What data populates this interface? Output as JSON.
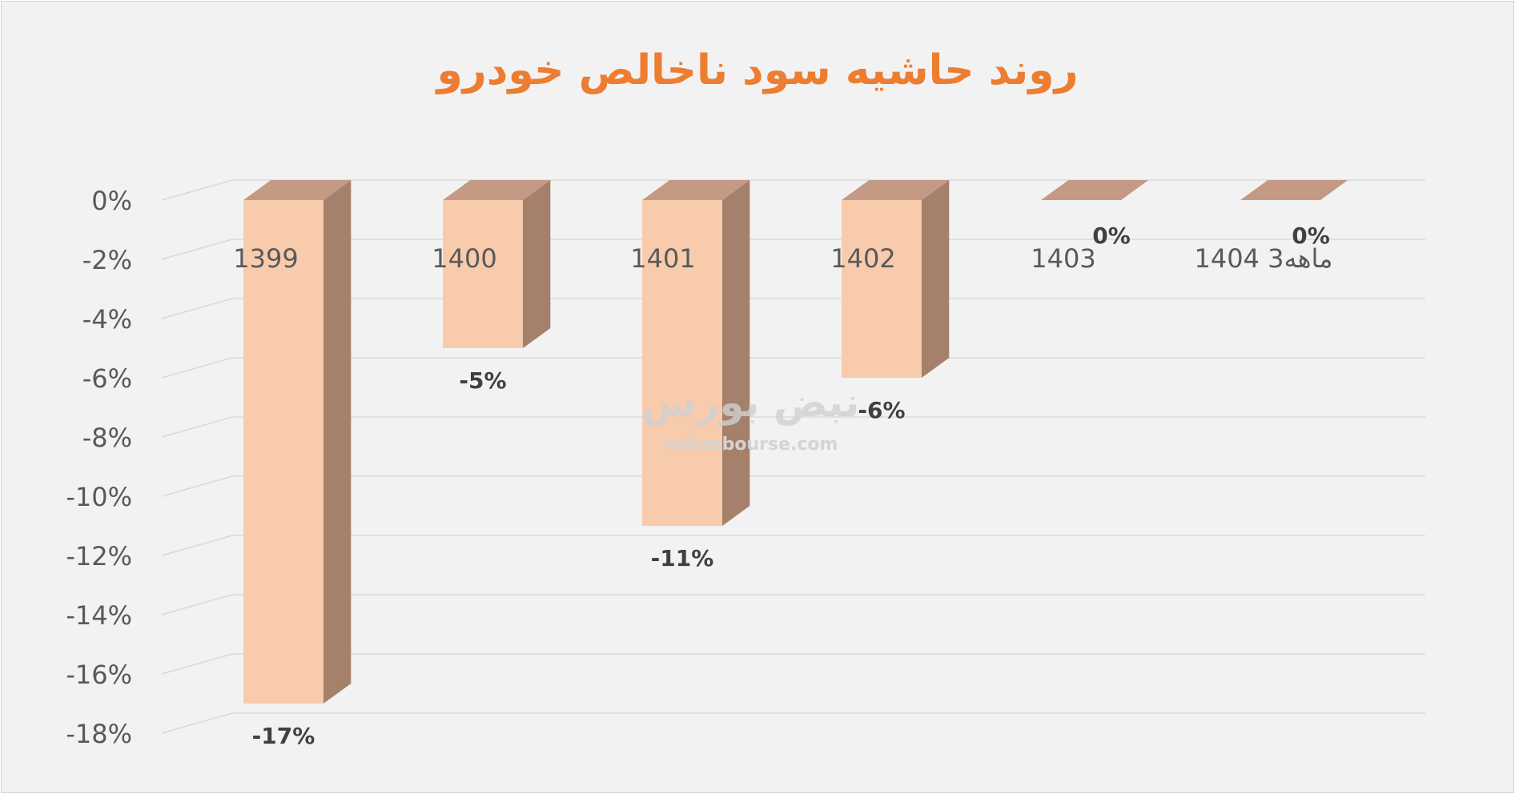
{
  "chart_data": {
    "type": "bar",
    "title": "روند حاشیه سود ناخالص خودرو",
    "categories": [
      "1399",
      "1400",
      "1401",
      "1402",
      "1403",
      "1404 3ماهه"
    ],
    "values": [
      -17,
      -5,
      -11,
      -6,
      0,
      0
    ],
    "data_labels": [
      "-17%",
      "-5%",
      "-11%",
      "-6%",
      "0%",
      "0%"
    ],
    "ylim": [
      -18,
      0
    ],
    "yticks": [
      "0%",
      "-2%",
      "-4%",
      "-6%",
      "-8%",
      "-10%",
      "-12%",
      "-14%",
      "-16%",
      "-18%"
    ],
    "grid": true,
    "colors": {
      "bar_front": "#f8cbad",
      "bar_side": "#a5806a",
      "bar_top": "#c49a84",
      "title": "#ed7d31",
      "text": "#595959",
      "label": "#404040",
      "grid": "#d9d9d9"
    }
  },
  "watermark": {
    "logo_text": "نبض بورس",
    "url_text": "nabzebourse.com"
  }
}
